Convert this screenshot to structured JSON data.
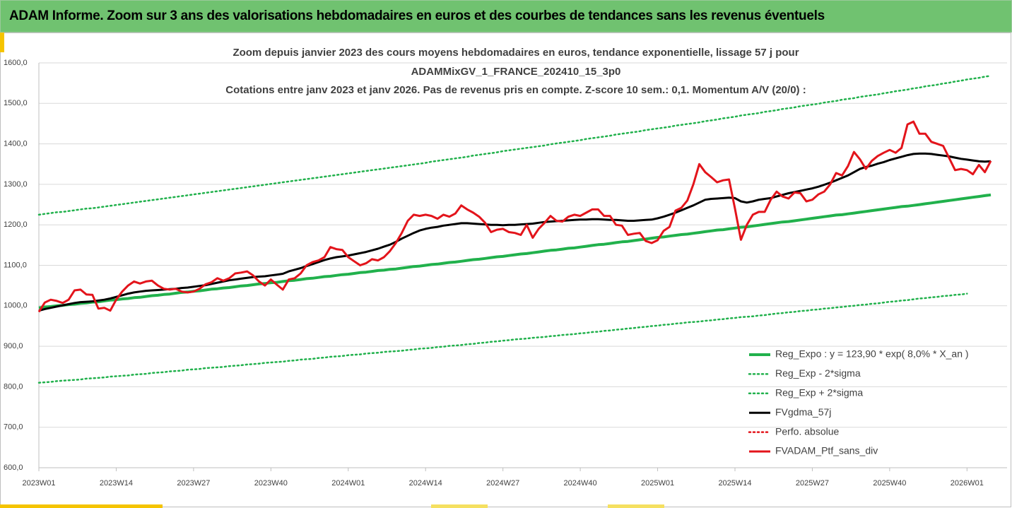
{
  "header": {
    "title": "ADAM Informe. Zoom sur 3 ans des valorisations hebdomadaires en euros et des courbes de tendances sans les revenus éventuels"
  },
  "chart_data": {
    "type": "line",
    "title": [
      "Zoom depuis janvier 2023 des cours moyens hebdomadaires  en euros, tendance exponentielle, lissage 57 j pour",
      "ADAMMixGV_1_FRANCE_202410_15_3p0",
      "Cotations  entre janv 2023 et janv 2026. Pas de revenus pris en compte. Z-score 10 sem.: 0,1. Momentum A/V (20/0) :"
    ],
    "categories": [
      "2023W01",
      null,
      null,
      null,
      null,
      null,
      null,
      null,
      null,
      null,
      null,
      null,
      null,
      "2023W14",
      null,
      null,
      null,
      null,
      null,
      null,
      null,
      null,
      null,
      null,
      null,
      null,
      "2023W27",
      null,
      null,
      null,
      null,
      null,
      null,
      null,
      null,
      null,
      null,
      null,
      null,
      "2023W40",
      null,
      null,
      null,
      null,
      null,
      null,
      null,
      null,
      null,
      null,
      null,
      null,
      "2024W01",
      null,
      null,
      null,
      null,
      null,
      null,
      null,
      null,
      null,
      null,
      null,
      null,
      "2024W14",
      null,
      null,
      null,
      null,
      null,
      null,
      null,
      null,
      null,
      null,
      null,
      null,
      "2024W27",
      null,
      null,
      null,
      null,
      null,
      null,
      null,
      null,
      null,
      null,
      null,
      null,
      "2024W40",
      null,
      null,
      null,
      null,
      null,
      null,
      null,
      null,
      null,
      null,
      null,
      null,
      "2025W01",
      null,
      null,
      null,
      null,
      null,
      null,
      null,
      null,
      null,
      null,
      null,
      null,
      "2025W14",
      null,
      null,
      null,
      null,
      null,
      null,
      null,
      null,
      null,
      null,
      null,
      null,
      "2025W27",
      null,
      null,
      null,
      null,
      null,
      null,
      null,
      null,
      null,
      null,
      null,
      null,
      "2025W40",
      null,
      null,
      null,
      null,
      null,
      null,
      null,
      null,
      null,
      null,
      null,
      null,
      "2026W01",
      null,
      null,
      null,
      null
    ],
    "ylim": [
      600,
      1600
    ],
    "yticks": [
      {
        "value": 600,
        "label": "600,0"
      },
      {
        "value": 700,
        "label": "700,0"
      },
      {
        "value": 800,
        "label": "800,0"
      },
      {
        "value": 900,
        "label": "900,0"
      },
      {
        "value": 1000,
        "label": "1000,0"
      },
      {
        "value": 1100,
        "label": "1100,0"
      },
      {
        "value": 1200,
        "label": "1200,0"
      },
      {
        "value": 1300,
        "label": "1300,0"
      },
      {
        "value": 1400,
        "label": "1400,0"
      },
      {
        "value": 1500,
        "label": "1500,0"
      },
      {
        "value": 1600,
        "label": "1600,0"
      }
    ],
    "grid": true,
    "legend": "lower right",
    "series": [
      {
        "name": "Reg_Expo : y = 123,90 * exp( 8,0% *  X_an )",
        "color": "#21b14c",
        "style": "solid",
        "values": [
          995,
          997,
          998,
          1000,
          1001,
          1003,
          1004,
          1006,
          1007,
          1009,
          1010,
          1012,
          1014,
          1015,
          1017,
          1018,
          1020,
          1021,
          1023,
          1025,
          1026,
          1028,
          1029,
          1031,
          1033,
          1034,
          1036,
          1037,
          1039,
          1041,
          1042,
          1044,
          1045,
          1047,
          1049,
          1050,
          1052,
          1054,
          1055,
          1057,
          1058,
          1060,
          1062,
          1063,
          1065,
          1067,
          1068,
          1070,
          1072,
          1073,
          1075,
          1077,
          1078,
          1080,
          1082,
          1083,
          1085,
          1087,
          1088,
          1090,
          1091,
          1093,
          1095,
          1097,
          1098,
          1100,
          1102,
          1103,
          1105,
          1107,
          1108,
          1110,
          1112,
          1114,
          1115,
          1117,
          1119,
          1121,
          1122,
          1124,
          1126,
          1128,
          1129,
          1131,
          1133,
          1135,
          1137,
          1138,
          1140,
          1142,
          1143,
          1145,
          1147,
          1149,
          1151,
          1152,
          1154,
          1156,
          1158,
          1159,
          1161,
          1163,
          1165,
          1167,
          1169,
          1170,
          1172,
          1174,
          1176,
          1177,
          1179,
          1181,
          1183,
          1185,
          1187,
          1188,
          1190,
          1192,
          1194,
          1195,
          1197,
          1199,
          1201,
          1203,
          1205,
          1207,
          1208,
          1210,
          1212,
          1214,
          1216,
          1218,
          1220,
          1222,
          1224,
          1225,
          1227,
          1229,
          1231,
          1233,
          1235,
          1237,
          1239,
          1241,
          1243,
          1245,
          1246,
          1248,
          1250,
          1252,
          1254,
          1256,
          1258,
          1260,
          1262,
          1264,
          1266,
          1268,
          1270,
          1272,
          1274
        ]
      },
      {
        "name": "Reg_Exp - 2*sigma",
        "color": "#21b14c",
        "style": "dotted",
        "values": [
          810,
          811,
          812,
          814,
          815,
          816,
          817,
          818,
          820,
          821,
          822,
          823,
          825,
          826,
          827,
          828,
          830,
          831,
          832,
          834,
          835,
          836,
          838,
          839,
          840,
          842,
          843,
          844,
          846,
          847,
          848,
          849,
          851,
          852,
          853,
          855,
          856,
          857,
          859,
          860,
          861,
          862,
          864,
          865,
          867,
          868,
          869,
          871,
          872,
          874,
          875,
          876,
          878,
          879,
          880,
          882,
          883,
          884,
          886,
          887,
          888,
          889,
          891,
          892,
          894,
          895,
          896,
          898,
          899,
          901,
          902,
          903,
          905,
          906,
          908,
          909,
          911,
          912,
          914,
          915,
          917,
          918,
          919,
          921,
          922,
          923,
          925,
          926,
          928,
          929,
          930,
          932,
          933,
          935,
          936,
          938,
          939,
          941,
          942,
          944,
          945,
          947,
          948,
          950,
          951,
          953,
          954,
          956,
          957,
          959,
          960,
          961,
          963,
          964,
          966,
          967,
          969,
          970,
          972,
          973,
          974,
          976,
          977,
          979,
          981,
          982,
          984,
          985,
          987,
          988,
          990,
          991,
          993,
          994,
          996,
          997,
          999,
          1000,
          1002,
          1003,
          1005,
          1006,
          1008,
          1010,
          1011,
          1013,
          1014,
          1016,
          1018,
          1019,
          1021,
          1022,
          1024,
          1025,
          1027,
          1028,
          1030,
          null,
          null,
          null,
          null
        ]
      },
      {
        "name": "Reg_Exp + 2*sigma",
        "color": "#21b14c",
        "style": "dotted",
        "values": [
          1225,
          1227,
          1229,
          1231,
          1232,
          1234,
          1236,
          1238,
          1240,
          1241,
          1243,
          1245,
          1247,
          1249,
          1251,
          1253,
          1255,
          1257,
          1259,
          1261,
          1263,
          1265,
          1267,
          1269,
          1271,
          1273,
          1275,
          1277,
          1279,
          1281,
          1283,
          1285,
          1287,
          1289,
          1291,
          1293,
          1295,
          1297,
          1299,
          1301,
          1303,
          1305,
          1307,
          1309,
          1311,
          1313,
          1315,
          1317,
          1319,
          1321,
          1323,
          1325,
          1327,
          1329,
          1331,
          1333,
          1335,
          1337,
          1339,
          1341,
          1343,
          1345,
          1347,
          1349,
          1351,
          1353,
          1356,
          1358,
          1360,
          1362,
          1364,
          1366,
          1368,
          1371,
          1373,
          1375,
          1377,
          1379,
          1382,
          1384,
          1386,
          1388,
          1390,
          1392,
          1394,
          1396,
          1399,
          1401,
          1403,
          1405,
          1407,
          1409,
          1412,
          1414,
          1416,
          1418,
          1420,
          1423,
          1425,
          1427,
          1429,
          1431,
          1434,
          1436,
          1438,
          1440,
          1442,
          1445,
          1447,
          1449,
          1451,
          1453,
          1456,
          1458,
          1460,
          1463,
          1465,
          1467,
          1470,
          1472,
          1474,
          1476,
          1479,
          1481,
          1483,
          1486,
          1488,
          1490,
          1493,
          1495,
          1497,
          1499,
          1502,
          1504,
          1506,
          1509,
          1511,
          1513,
          1516,
          1518,
          1520,
          1522,
          1525,
          1527,
          1530,
          1532,
          1534,
          1537,
          1539,
          1542,
          1544,
          1546,
          1549,
          1551,
          1554,
          1556,
          1559,
          1561,
          1563,
          1566,
          1568
        ]
      },
      {
        "name": "FVgdma_57j",
        "color": "#000000",
        "style": "solid",
        "values": [
          988,
          992,
          995,
          998,
          1001,
          1004,
          1007,
          1009,
          1010,
          1011,
          1013,
          1015,
          1018,
          1022,
          1026,
          1030,
          1033,
          1035,
          1037,
          1038,
          1039,
          1040,
          1041,
          1042,
          1044,
          1045,
          1047,
          1049,
          1051,
          1054,
          1057,
          1060,
          1063,
          1065,
          1067,
          1069,
          1071,
          1072,
          1073,
          1075,
          1077,
          1079,
          1085,
          1089,
          1093,
          1098,
          1103,
          1108,
          1113,
          1117,
          1120,
          1122,
          1124,
          1127,
          1130,
          1133,
          1137,
          1141,
          1146,
          1151,
          1158,
          1166,
          1173,
          1180,
          1186,
          1190,
          1193,
          1195,
          1198,
          1200,
          1202,
          1204,
          1204,
          1203,
          1202,
          1201,
          1200,
          1200,
          1199,
          1200,
          1200,
          1201,
          1202,
          1203,
          1205,
          1207,
          1208,
          1209,
          1210,
          1211,
          1212,
          1213,
          1213,
          1214,
          1214,
          1213,
          1212,
          1212,
          1211,
          1210,
          1210,
          1211,
          1212,
          1213,
          1216,
          1220,
          1225,
          1230,
          1236,
          1242,
          1248,
          1255,
          1262,
          1264,
          1265,
          1266,
          1267,
          1266,
          1258,
          1255,
          1258,
          1262,
          1264,
          1266,
          1270,
          1274,
          1278,
          1281,
          1284,
          1287,
          1290,
          1294,
          1299,
          1304,
          1310,
          1316,
          1322,
          1330,
          1338,
          1343,
          1346,
          1351,
          1355,
          1360,
          1364,
          1368,
          1372,
          1375,
          1376,
          1376,
          1375,
          1373,
          1371,
          1369,
          1366,
          1363,
          1361,
          1359,
          1357,
          1356,
          1357
        ]
      },
      {
        "name": "Perfo. absolue",
        "color": "#e3141b",
        "style": "dotted"
      },
      {
        "name": "FVADAM_Ptf_sans_div",
        "color": "#e3141b",
        "style": "solid",
        "values": [
          985,
          1008,
          1015,
          1012,
          1007,
          1015,
          1038,
          1040,
          1028,
          1027,
          993,
          995,
          988,
          1015,
          1035,
          1050,
          1060,
          1055,
          1060,
          1062,
          1050,
          1042,
          1040,
          1042,
          1035,
          1033,
          1035,
          1042,
          1053,
          1058,
          1068,
          1062,
          1068,
          1080,
          1082,
          1085,
          1075,
          1060,
          1050,
          1065,
          1052,
          1040,
          1065,
          1068,
          1080,
          1100,
          1108,
          1112,
          1120,
          1145,
          1140,
          1138,
          1120,
          1110,
          1100,
          1105,
          1115,
          1112,
          1120,
          1135,
          1155,
          1180,
          1210,
          1225,
          1222,
          1225,
          1222,
          1215,
          1225,
          1220,
          1228,
          1248,
          1238,
          1230,
          1220,
          1205,
          1182,
          1188,
          1190,
          1182,
          1180,
          1175,
          1200,
          1168,
          1190,
          1205,
          1222,
          1210,
          1208,
          1220,
          1225,
          1222,
          1230,
          1238,
          1238,
          1222,
          1222,
          1200,
          1198,
          1175,
          1178,
          1180,
          1160,
          1155,
          1162,
          1185,
          1195,
          1235,
          1242,
          1260,
          1300,
          1350,
          1330,
          1318,
          1305,
          1310,
          1312,
          1240,
          1163,
          1200,
          1225,
          1232,
          1232,
          1262,
          1282,
          1270,
          1265,
          1280,
          1278,
          1258,
          1262,
          1275,
          1282,
          1300,
          1328,
          1322,
          1345,
          1380,
          1362,
          1338,
          1358,
          1370,
          1378,
          1385,
          1378,
          1390,
          1448,
          1455,
          1425,
          1425,
          1405,
          1400,
          1395,
          1365,
          1335,
          1338,
          1335,
          1325,
          1348,
          1330,
          1358
        ]
      }
    ]
  }
}
